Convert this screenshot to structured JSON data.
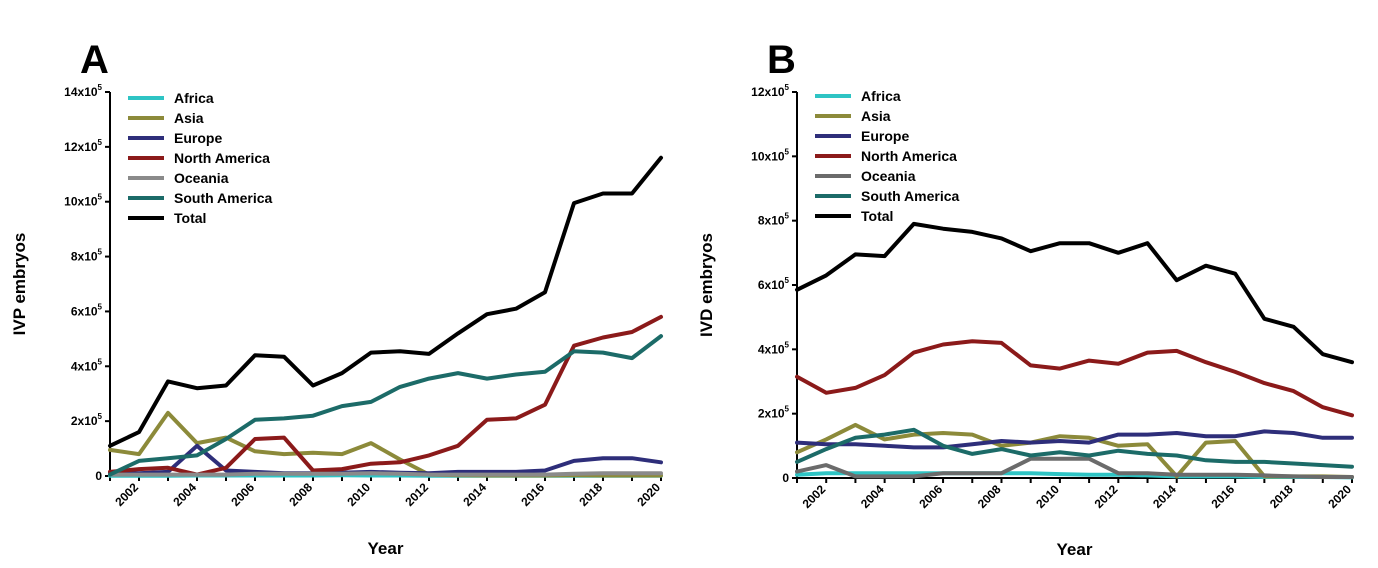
{
  "chart_data": [
    {
      "type": "line",
      "panel_label": "A",
      "xlabel": "Year",
      "ylabel": "IVP embryos",
      "x": [
        2001,
        2002,
        2003,
        2004,
        2005,
        2006,
        2007,
        2008,
        2009,
        2010,
        2011,
        2012,
        2013,
        2014,
        2015,
        2016,
        2017,
        2018,
        2019,
        2020
      ],
      "xticks": [
        2002,
        2004,
        2006,
        2008,
        2010,
        2012,
        2014,
        2016,
        2018,
        2020
      ],
      "xlim": [
        2001,
        2020
      ],
      "ylim": [
        0,
        1400000
      ],
      "yticks": [
        0,
        200000,
        400000,
        600000,
        800000,
        1000000,
        1200000,
        1400000
      ],
      "ytick_labels": [
        {
          "base": "0",
          "exp": ""
        },
        {
          "base": "2x10",
          "exp": "5"
        },
        {
          "base": "4x10",
          "exp": "5"
        },
        {
          "base": "6x10",
          "exp": "5"
        },
        {
          "base": "8x10",
          "exp": "5"
        },
        {
          "base": "10x10",
          "exp": "5"
        },
        {
          "base": "12x10",
          "exp": "5"
        },
        {
          "base": "14x10",
          "exp": "5"
        }
      ],
      "legend_position": "top-left",
      "series": [
        {
          "name": "Africa",
          "color": "#2ec4c4",
          "values": [
            1000,
            1000,
            1000,
            2000,
            2000,
            2000,
            2000,
            2000,
            3000,
            2000,
            2000,
            1000,
            1000,
            1000,
            1000,
            1000,
            1000,
            1000,
            1000,
            1000
          ]
        },
        {
          "name": "Asia",
          "color": "#8c8a3a",
          "values": [
            95000,
            80000,
            230000,
            120000,
            140000,
            90000,
            80000,
            85000,
            80000,
            120000,
            60000,
            5000,
            3000,
            2000,
            2000,
            2000,
            3000,
            2000,
            2000,
            2000
          ]
        },
        {
          "name": "Europe",
          "color": "#2e2e7a",
          "values": [
            10000,
            10000,
            15000,
            110000,
            20000,
            15000,
            10000,
            10000,
            12000,
            15000,
            12000,
            10000,
            15000,
            15000,
            15000,
            20000,
            55000,
            65000,
            65000,
            50000
          ]
        },
        {
          "name": "North America",
          "color": "#8b1a1a",
          "values": [
            15000,
            25000,
            30000,
            5000,
            30000,
            135000,
            140000,
            20000,
            25000,
            45000,
            50000,
            75000,
            110000,
            205000,
            210000,
            260000,
            475000,
            505000,
            525000,
            580000
          ]
        },
        {
          "name": "Oceania",
          "color": "#8a8a8a",
          "values": [
            5000,
            5000,
            5000,
            5000,
            5000,
            8000,
            8000,
            8000,
            8000,
            10000,
            8000,
            5000,
            5000,
            5000,
            5000,
            5000,
            8000,
            10000,
            10000,
            10000
          ]
        },
        {
          "name": "South America",
          "color": "#1c6b68",
          "values": [
            5000,
            55000,
            65000,
            75000,
            135000,
            205000,
            210000,
            220000,
            255000,
            270000,
            325000,
            355000,
            375000,
            355000,
            370000,
            380000,
            455000,
            450000,
            430000,
            510000
          ]
        },
        {
          "name": "Total",
          "color": "#000000",
          "values": [
            110000,
            160000,
            345000,
            320000,
            330000,
            440000,
            435000,
            330000,
            375000,
            450000,
            455000,
            445000,
            520000,
            590000,
            610000,
            670000,
            995000,
            1030000,
            1030000,
            1160000
          ]
        }
      ]
    },
    {
      "type": "line",
      "panel_label": "B",
      "xlabel": "Year",
      "ylabel": "IVD embryos",
      "x": [
        2001,
        2002,
        2003,
        2004,
        2005,
        2006,
        2007,
        2008,
        2009,
        2010,
        2011,
        2012,
        2013,
        2014,
        2015,
        2016,
        2017,
        2018,
        2019,
        2020
      ],
      "xticks": [
        2002,
        2004,
        2006,
        2008,
        2010,
        2012,
        2014,
        2016,
        2018,
        2020
      ],
      "xlim": [
        2001,
        2020
      ],
      "ylim": [
        0,
        1200000
      ],
      "yticks": [
        0,
        200000,
        400000,
        600000,
        800000,
        1000000,
        1200000
      ],
      "ytick_labels": [
        {
          "base": "0",
          "exp": ""
        },
        {
          "base": "2x10",
          "exp": "5"
        },
        {
          "base": "4x10",
          "exp": "5"
        },
        {
          "base": "6x10",
          "exp": "5"
        },
        {
          "base": "8x10",
          "exp": "5"
        },
        {
          "base": "10x10",
          "exp": "5"
        },
        {
          "base": "12x10",
          "exp": "5"
        }
      ],
      "legend_position": "top-left",
      "series": [
        {
          "name": "Africa",
          "color": "#2ec4c4",
          "values": [
            10000,
            15000,
            15000,
            15000,
            15000,
            15000,
            15000,
            15000,
            15000,
            12000,
            10000,
            10000,
            8000,
            5000,
            5000,
            5000,
            3000,
            3000,
            3000,
            2000
          ]
        },
        {
          "name": "Asia",
          "color": "#8c8a3a",
          "values": [
            80000,
            120000,
            165000,
            120000,
            135000,
            140000,
            135000,
            100000,
            110000,
            130000,
            125000,
            100000,
            105000,
            5000,
            110000,
            115000,
            5000,
            5000,
            5000,
            3000
          ]
        },
        {
          "name": "Europe",
          "color": "#2e2e7a",
          "values": [
            110000,
            105000,
            105000,
            100000,
            95000,
            95000,
            105000,
            115000,
            110000,
            115000,
            110000,
            135000,
            135000,
            140000,
            130000,
            130000,
            145000,
            140000,
            125000,
            125000
          ]
        },
        {
          "name": "North America",
          "color": "#8b1a1a",
          "values": [
            315000,
            265000,
            280000,
            320000,
            390000,
            415000,
            425000,
            420000,
            350000,
            340000,
            365000,
            355000,
            390000,
            395000,
            360000,
            330000,
            295000,
            270000,
            220000,
            195000
          ]
        },
        {
          "name": "Oceania",
          "color": "#6b6b6b",
          "values": [
            20000,
            40000,
            5000,
            5000,
            5000,
            15000,
            15000,
            15000,
            60000,
            60000,
            60000,
            15000,
            15000,
            10000,
            10000,
            10000,
            8000,
            5000,
            3000,
            3000
          ]
        },
        {
          "name": "South America",
          "color": "#1c6b68",
          "values": [
            50000,
            90000,
            125000,
            135000,
            150000,
            100000,
            75000,
            90000,
            70000,
            80000,
            70000,
            85000,
            75000,
            70000,
            55000,
            50000,
            50000,
            45000,
            40000,
            35000
          ]
        },
        {
          "name": "Total",
          "color": "#000000",
          "values": [
            585000,
            630000,
            695000,
            690000,
            790000,
            775000,
            765000,
            745000,
            705000,
            730000,
            730000,
            700000,
            730000,
            615000,
            660000,
            635000,
            495000,
            470000,
            385000,
            360000
          ]
        }
      ]
    }
  ]
}
